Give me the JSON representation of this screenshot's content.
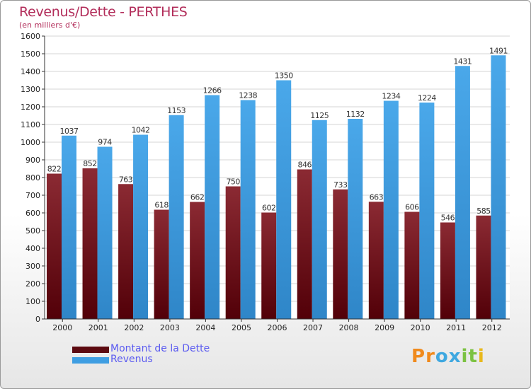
{
  "title": "Revenus/Dette - PERTHES",
  "subtitle": "(en milliers d'€)",
  "chart_data": {
    "type": "bar",
    "title": "Revenus/Dette - PERTHES",
    "subtitle": "(en milliers d'€)",
    "categories": [
      "2000",
      "2001",
      "2002",
      "2003",
      "2004",
      "2005",
      "2006",
      "2007",
      "2008",
      "2009",
      "2010",
      "2011",
      "2012"
    ],
    "series": [
      {
        "name": "Montant de la Dette",
        "values": [
          822,
          852,
          763,
          618,
          662,
          750,
          602,
          846,
          733,
          663,
          606,
          546,
          585
        ],
        "color": "#7a1520"
      },
      {
        "name": "Revenus",
        "values": [
          1037,
          974,
          1042,
          1153,
          1266,
          1238,
          1350,
          1125,
          1132,
          1234,
          1224,
          1431,
          1491
        ],
        "color": "#3f9ee2"
      }
    ],
    "ylim": [
      0,
      1600
    ],
    "yticks": [
      0,
      100,
      200,
      300,
      400,
      500,
      600,
      700,
      800,
      900,
      1000,
      1100,
      1200,
      1300,
      1400,
      1500,
      1600
    ],
    "grid": true,
    "legend": "bottom-left"
  },
  "legend": [
    {
      "label": "Montant de la Dette",
      "color": "#5c0a10"
    },
    {
      "label": "Revenus",
      "color": "#3f9ee2"
    }
  ],
  "logo": {
    "letters": [
      "P",
      "r",
      "o",
      "x",
      "i",
      "t",
      "i"
    ],
    "colors": [
      "#f08a1c",
      "#f08a1c",
      "#3fa8e0",
      "#3fa8e0",
      "#7cc242",
      "#7cc242",
      "#e8b81c"
    ]
  }
}
